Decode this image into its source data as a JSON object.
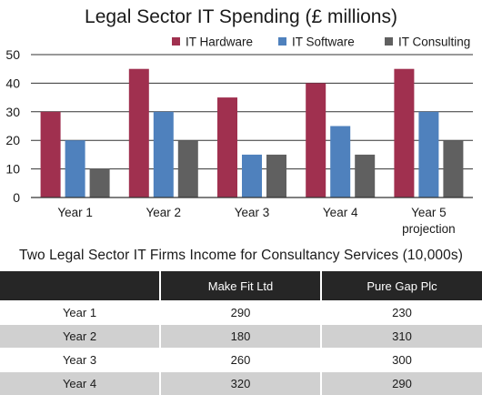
{
  "chart_data": {
    "type": "bar",
    "title": "Legal Sector IT Spending (£ millions)",
    "categories": [
      "Year 1",
      "Year 2",
      "Year 3",
      "Year 4",
      "Year 5 projection"
    ],
    "category_lines": [
      [
        "Year 1"
      ],
      [
        "Year 2"
      ],
      [
        "Year 3"
      ],
      [
        "Year 4"
      ],
      [
        "Year 5",
        "projection"
      ]
    ],
    "series": [
      {
        "name": "IT Hardware",
        "values": [
          30,
          45,
          35,
          40,
          45
        ],
        "color": "#a0304f"
      },
      {
        "name": "IT Software",
        "values": [
          20,
          30,
          15,
          25,
          30
        ],
        "color": "#4f81bd"
      },
      {
        "name": "IT Consulting",
        "values": [
          10,
          20,
          15,
          15,
          20
        ],
        "color": "#606060"
      }
    ],
    "ylim": [
      0,
      50
    ],
    "yticks": [
      0,
      10,
      20,
      30,
      40,
      50
    ],
    "grid": true,
    "legend_position": "top"
  },
  "table": {
    "title": "Two Legal Sector IT Firms Income for Consultancy Services (10,000s)",
    "columns": [
      "",
      "Make Fit Ltd",
      "Pure Gap Plc"
    ],
    "rows": [
      [
        "Year 1",
        "290",
        "230"
      ],
      [
        "Year 2",
        "180",
        "310"
      ],
      [
        "Year 3",
        "260",
        "300"
      ],
      [
        "Year 4",
        "320",
        "290"
      ]
    ]
  }
}
